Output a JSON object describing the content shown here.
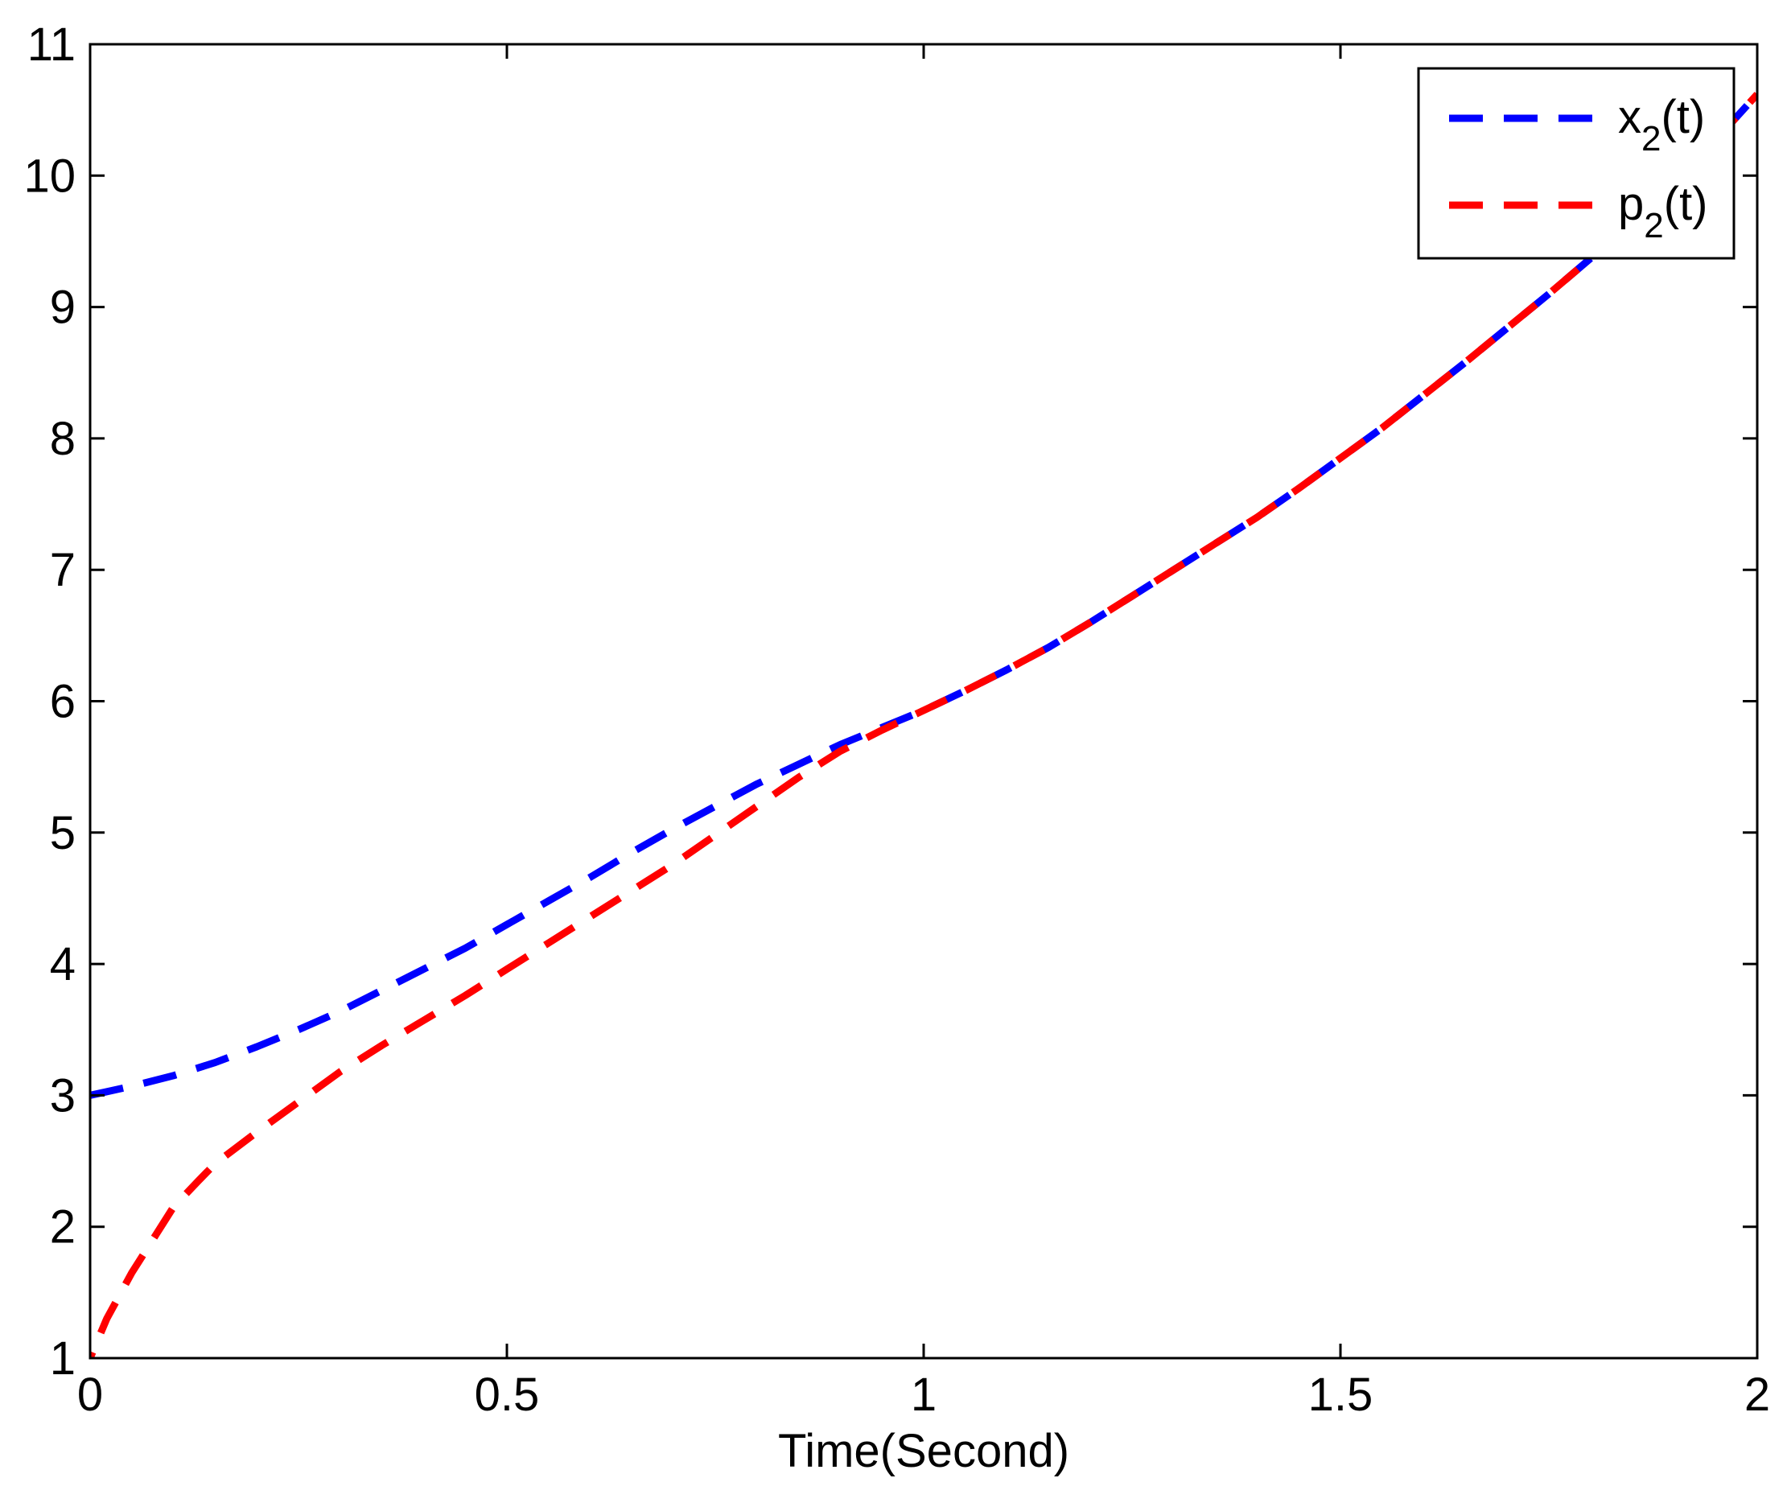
{
  "chart_data": {
    "type": "line",
    "title": "",
    "xlabel": "Time(Second)",
    "ylabel": "",
    "xlim": [
      0,
      2
    ],
    "ylim": [
      1,
      11
    ],
    "xticks": [
      {
        "value": 0,
        "label": "0"
      },
      {
        "value": 0.5,
        "label": "0.5"
      },
      {
        "value": 1,
        "label": "1"
      },
      {
        "value": 1.5,
        "label": "1.5"
      },
      {
        "value": 2,
        "label": "2"
      }
    ],
    "yticks": [
      {
        "value": 1,
        "label": "1"
      },
      {
        "value": 2,
        "label": "2"
      },
      {
        "value": 3,
        "label": "3"
      },
      {
        "value": 4,
        "label": "4"
      },
      {
        "value": 5,
        "label": "5"
      },
      {
        "value": 6,
        "label": "6"
      },
      {
        "value": 7,
        "label": "7"
      },
      {
        "value": 8,
        "label": "8"
      },
      {
        "value": 9,
        "label": "9"
      },
      {
        "value": 10,
        "label": "10"
      },
      {
        "value": 11,
        "label": "11"
      }
    ],
    "grid": false,
    "legend_position": "top-right",
    "series": [
      {
        "name": "x",
        "name_subscript": "2",
        "name_suffix": "(t)",
        "color": "#0000ff",
        "style": "dashed",
        "x": [
          0,
          0.05,
          0.1,
          0.15,
          0.2,
          0.25,
          0.3,
          0.35,
          0.4,
          0.45,
          0.5,
          0.55,
          0.6,
          0.65,
          0.7,
          0.75,
          0.8,
          0.85,
          0.9,
          0.95,
          1.0,
          1.05,
          1.1,
          1.15,
          1.2,
          1.25,
          1.3,
          1.35,
          1.4,
          1.45,
          1.5,
          1.55,
          1.6,
          1.65,
          1.7,
          1.75,
          1.8,
          1.85,
          1.9,
          1.95,
          2.0
        ],
        "y": [
          3.0,
          3.07,
          3.15,
          3.25,
          3.37,
          3.5,
          3.64,
          3.8,
          3.96,
          4.12,
          4.3,
          4.48,
          4.66,
          4.85,
          5.03,
          5.2,
          5.37,
          5.52,
          5.67,
          5.8,
          5.93,
          6.08,
          6.24,
          6.41,
          6.6,
          6.8,
          7.0,
          7.2,
          7.4,
          7.62,
          7.85,
          8.08,
          8.33,
          8.58,
          8.84,
          9.1,
          9.37,
          9.65,
          9.95,
          10.27,
          10.62
        ]
      },
      {
        "name": "p",
        "name_subscript": "2",
        "name_suffix": "(t)",
        "color": "#ff0000",
        "style": "dashed",
        "x": [
          0,
          0.02,
          0.05,
          0.08,
          0.1,
          0.13,
          0.15,
          0.2,
          0.25,
          0.3,
          0.35,
          0.4,
          0.45,
          0.5,
          0.55,
          0.6,
          0.65,
          0.7,
          0.75,
          0.8,
          0.85,
          0.9,
          0.95,
          1.0,
          1.05,
          1.1,
          1.15,
          1.2,
          1.25,
          1.3,
          1.35,
          1.4,
          1.45,
          1.5,
          1.55,
          1.6,
          1.65,
          1.7,
          1.75,
          1.8,
          1.85,
          1.9,
          1.95,
          2.0
        ],
        "y": [
          1.0,
          1.3,
          1.65,
          1.95,
          2.15,
          2.35,
          2.48,
          2.72,
          2.95,
          3.18,
          3.38,
          3.57,
          3.76,
          3.96,
          4.16,
          4.36,
          4.56,
          4.76,
          4.98,
          5.2,
          5.42,
          5.62,
          5.78,
          5.93,
          6.08,
          6.24,
          6.41,
          6.6,
          6.8,
          7.0,
          7.2,
          7.4,
          7.62,
          7.85,
          8.08,
          8.33,
          8.58,
          8.84,
          9.1,
          9.37,
          9.65,
          9.95,
          10.27,
          10.62
        ]
      }
    ]
  }
}
